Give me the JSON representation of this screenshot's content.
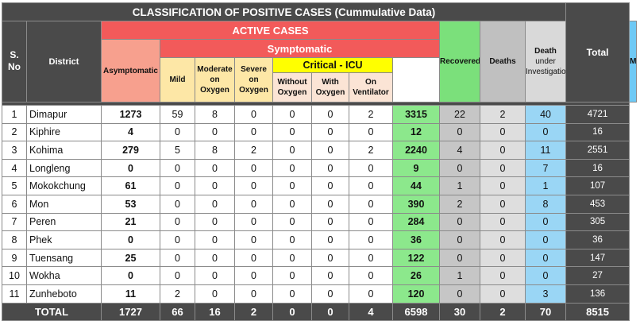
{
  "title": "CLASSIFICATION OF POSITIVE CASES (Cummulative Data)",
  "headers": {
    "sno": "S.\nNo",
    "district": "District",
    "active_cases": "ACTIVE CASES",
    "asymptomatic": "Asymptomatic",
    "symptomatic": "Symptomatic",
    "mild": "Mild",
    "moderate": "Moderate on Oxygen",
    "severe": "Severe on Oxygen",
    "critical_icu": "Critical - ICU",
    "without_oxygen": "Without Oxygen",
    "with_oxygen": "With Oxygen",
    "on_ventilator": "On Ventilator",
    "recovered": "Recovered",
    "deaths": "Deaths",
    "death_under_investigation_bold": "Death",
    "death_under_investigation_rest": " under Investigation",
    "migrated": "Migrated",
    "total": "Total"
  },
  "rows": [
    {
      "sno": "1",
      "district": "Dimapur",
      "asym": "1273",
      "mild": "59",
      "moderate": "8",
      "severe": "0",
      "without_oxygen": "0",
      "with_oxygen": "0",
      "on_ventilator": "2",
      "recovered": "3315",
      "deaths": "22",
      "dui": "2",
      "migrated": "40",
      "total": "4721"
    },
    {
      "sno": "2",
      "district": "Kiphire",
      "asym": "4",
      "mild": "0",
      "moderate": "0",
      "severe": "0",
      "without_oxygen": "0",
      "with_oxygen": "0",
      "on_ventilator": "0",
      "recovered": "12",
      "deaths": "0",
      "dui": "0",
      "migrated": "0",
      "total": "16"
    },
    {
      "sno": "3",
      "district": "Kohima",
      "asym": "279",
      "mild": "5",
      "moderate": "8",
      "severe": "2",
      "without_oxygen": "0",
      "with_oxygen": "0",
      "on_ventilator": "2",
      "recovered": "2240",
      "deaths": "4",
      "dui": "0",
      "migrated": "11",
      "total": "2551"
    },
    {
      "sno": "4",
      "district": "Longleng",
      "asym": "0",
      "mild": "0",
      "moderate": "0",
      "severe": "0",
      "without_oxygen": "0",
      "with_oxygen": "0",
      "on_ventilator": "0",
      "recovered": "9",
      "deaths": "0",
      "dui": "0",
      "migrated": "7",
      "total": "16"
    },
    {
      "sno": "5",
      "district": "Mokokchung",
      "asym": "61",
      "mild": "0",
      "moderate": "0",
      "severe": "0",
      "without_oxygen": "0",
      "with_oxygen": "0",
      "on_ventilator": "0",
      "recovered": "44",
      "deaths": "1",
      "dui": "0",
      "migrated": "1",
      "total": "107"
    },
    {
      "sno": "6",
      "district": "Mon",
      "asym": "53",
      "mild": "0",
      "moderate": "0",
      "severe": "0",
      "without_oxygen": "0",
      "with_oxygen": "0",
      "on_ventilator": "0",
      "recovered": "390",
      "deaths": "2",
      "dui": "0",
      "migrated": "8",
      "total": "453"
    },
    {
      "sno": "7",
      "district": "Peren",
      "asym": "21",
      "mild": "0",
      "moderate": "0",
      "severe": "0",
      "without_oxygen": "0",
      "with_oxygen": "0",
      "on_ventilator": "0",
      "recovered": "284",
      "deaths": "0",
      "dui": "0",
      "migrated": "0",
      "total": "305"
    },
    {
      "sno": "8",
      "district": "Phek",
      "asym": "0",
      "mild": "0",
      "moderate": "0",
      "severe": "0",
      "without_oxygen": "0",
      "with_oxygen": "0",
      "on_ventilator": "0",
      "recovered": "36",
      "deaths": "0",
      "dui": "0",
      "migrated": "0",
      "total": "36"
    },
    {
      "sno": "9",
      "district": "Tuensang",
      "asym": "25",
      "mild": "0",
      "moderate": "0",
      "severe": "0",
      "without_oxygen": "0",
      "with_oxygen": "0",
      "on_ventilator": "0",
      "recovered": "122",
      "deaths": "0",
      "dui": "0",
      "migrated": "0",
      "total": "147"
    },
    {
      "sno": "10",
      "district": "Wokha",
      "asym": "0",
      "mild": "0",
      "moderate": "0",
      "severe": "0",
      "without_oxygen": "0",
      "with_oxygen": "0",
      "on_ventilator": "0",
      "recovered": "26",
      "deaths": "1",
      "dui": "0",
      "migrated": "0",
      "total": "27"
    },
    {
      "sno": "11",
      "district": "Zunheboto",
      "asym": "11",
      "mild": "2",
      "moderate": "0",
      "severe": "0",
      "without_oxygen": "0",
      "with_oxygen": "0",
      "on_ventilator": "0",
      "recovered": "120",
      "deaths": "0",
      "dui": "0",
      "migrated": "3",
      "total": "136"
    }
  ],
  "totals": {
    "label": "TOTAL",
    "asym": "1727",
    "mild": "66",
    "moderate": "16",
    "severe": "2",
    "without_oxygen": "0",
    "with_oxygen": "0",
    "on_ventilator": "4",
    "recovered": "6598",
    "deaths": "30",
    "dui": "2",
    "migrated": "70",
    "total": "8515"
  },
  "colors": {
    "dark_header": "#4a4a4a",
    "active_red": "#f25a5a",
    "asymptomatic_salmon": "#f7a08e",
    "symptomatic_cream": "#fde7a6",
    "icu_yellow": "#ffff00",
    "icu_sub_pink": "#fbe4d5",
    "recovered_green": "#7be07b",
    "deaths_gray": "#c0c0c0",
    "migrated_blue": "#6ec9f5"
  }
}
